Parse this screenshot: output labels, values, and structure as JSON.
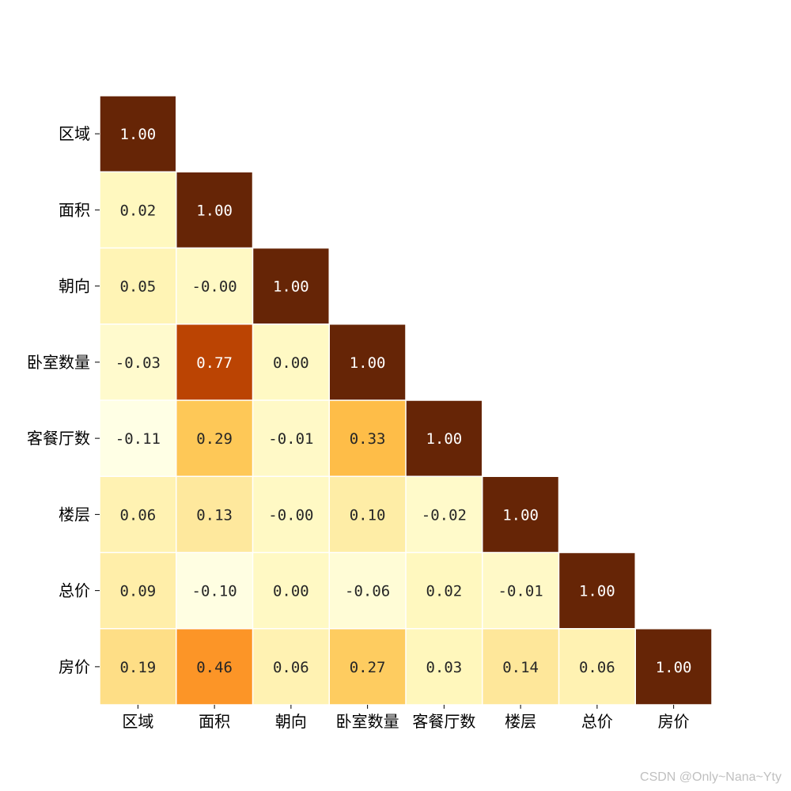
{
  "chart_data": {
    "type": "heatmap",
    "title": "",
    "xlabel": "",
    "ylabel": "",
    "mask": "lower-triangle",
    "colormap": "YlOrBr",
    "vmin": -0.11,
    "vmax": 1.0,
    "labels": [
      "区域",
      "面积",
      "朝向",
      "卧室数量",
      "客餐厅数",
      "楼层",
      "总价",
      "房价"
    ],
    "matrix": [
      [
        1.0
      ],
      [
        0.02,
        1.0
      ],
      [
        0.05,
        -0.0,
        1.0
      ],
      [
        -0.03,
        0.77,
        0.0,
        1.0
      ],
      [
        -0.11,
        0.29,
        -0.01,
        0.33,
        1.0
      ],
      [
        0.06,
        0.13,
        -0.0,
        0.1,
        -0.02,
        1.0
      ],
      [
        0.09,
        -0.1,
        0.0,
        -0.06,
        0.02,
        -0.01,
        1.0
      ],
      [
        0.19,
        0.46,
        0.06,
        0.27,
        0.03,
        0.14,
        0.06,
        1.0
      ]
    ],
    "display_values": [
      [
        "1.00"
      ],
      [
        "0.02",
        "1.00"
      ],
      [
        "0.05",
        "-0.00",
        "1.00"
      ],
      [
        "-0.03",
        "0.77",
        "0.00",
        "1.00"
      ],
      [
        "-0.11",
        "0.29",
        "-0.01",
        "0.33",
        "1.00"
      ],
      [
        "0.06",
        "0.13",
        "-0.00",
        "0.10",
        "-0.02",
        "1.00"
      ],
      [
        "0.09",
        "-0.10",
        "0.00",
        "-0.06",
        "0.02",
        "-0.01",
        "1.00"
      ],
      [
        "0.19",
        "0.46",
        "0.06",
        "0.27",
        "0.03",
        "0.14",
        "0.06",
        "1.00"
      ]
    ],
    "grid": false
  },
  "watermark": "CSDN @Only~Nana~Yty"
}
